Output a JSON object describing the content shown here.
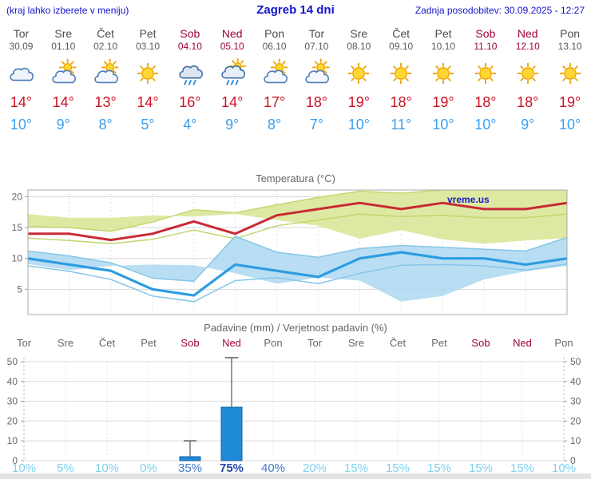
{
  "header": {
    "left_note": "(kraj lahko izberete v meniju)",
    "title": "Zagreb 14 dni",
    "updated": "Zadnja posodobitev: 30.09.2025 - 12:27"
  },
  "watermark": "vreme.us",
  "colors": {
    "link_blue": "#1414cc",
    "tmax_red": "#cc1122",
    "tmin_blue": "#3b9ff0",
    "weekend_red": "#a1003c",
    "line_max": "#c92a35",
    "line_min": "#2d9ce0",
    "band_max": "#dde9a2",
    "band_max_edge": "#c3d66e",
    "band_min": "#a9d7f0",
    "band_min_edge": "#86c6e8",
    "bar_fill": "#1f8ad8",
    "bar_stroke": "#11609f",
    "grid": "#d8d8d8",
    "prob_light": "#7fd2ee",
    "prob_mid": "#3f78cc",
    "prob_dark": "#2448a8"
  },
  "days": [
    {
      "name": "Tor",
      "date": "30.09",
      "weekend": false,
      "icon": "cloudy",
      "tmax": "14°",
      "tmin": "10°"
    },
    {
      "name": "Sre",
      "date": "01.10",
      "weekend": false,
      "icon": "partly",
      "tmax": "14°",
      "tmin": "9°"
    },
    {
      "name": "Čet",
      "date": "02.10",
      "weekend": false,
      "icon": "partly",
      "tmax": "13°",
      "tmin": "8°"
    },
    {
      "name": "Pet",
      "date": "03.10",
      "weekend": false,
      "icon": "sunny",
      "tmax": "14°",
      "tmin": "5°"
    },
    {
      "name": "Sob",
      "date": "04.10",
      "weekend": true,
      "icon": "rain",
      "tmax": "16°",
      "tmin": "4°"
    },
    {
      "name": "Ned",
      "date": "05.10",
      "weekend": true,
      "icon": "rain-partly",
      "tmax": "14°",
      "tmin": "9°"
    },
    {
      "name": "Pon",
      "date": "06.10",
      "weekend": false,
      "icon": "partly",
      "tmax": "17°",
      "tmin": "8°"
    },
    {
      "name": "Tor",
      "date": "07.10",
      "weekend": false,
      "icon": "partly",
      "tmax": "18°",
      "tmin": "7°"
    },
    {
      "name": "Sre",
      "date": "08.10",
      "weekend": false,
      "icon": "sunny",
      "tmax": "19°",
      "tmin": "10°"
    },
    {
      "name": "Čet",
      "date": "09.10",
      "weekend": false,
      "icon": "sunny",
      "tmax": "18°",
      "tmin": "11°"
    },
    {
      "name": "Pet",
      "date": "10.10",
      "weekend": false,
      "icon": "sunny",
      "tmax": "19°",
      "tmin": "10°"
    },
    {
      "name": "Sob",
      "date": "11.10",
      "weekend": true,
      "icon": "sunny",
      "tmax": "18°",
      "tmin": "10°"
    },
    {
      "name": "Ned",
      "date": "12.10",
      "weekend": true,
      "icon": "sunny",
      "tmax": "18°",
      "tmin": "9°"
    },
    {
      "name": "Pon",
      "date": "13.10",
      "weekend": false,
      "icon": "sunny",
      "tmax": "19°",
      "tmin": "10°"
    }
  ],
  "chart_data": [
    {
      "type": "line",
      "title": "Temperatura (°C)",
      "categories": [
        "Tor",
        "Sre",
        "Čet",
        "Pet",
        "Sob",
        "Ned",
        "Pon",
        "Tor",
        "Sre",
        "Čet",
        "Pet",
        "Sob",
        "Ned",
        "Pon"
      ],
      "ylim": [
        1,
        21
      ],
      "yticks": [
        5,
        10,
        15,
        20
      ],
      "grid": true,
      "series": [
        {
          "name": "Tmax",
          "values": [
            14,
            14,
            13,
            14,
            16,
            14,
            17,
            18,
            19,
            18,
            19,
            18,
            18,
            19
          ]
        },
        {
          "name": "Tmin",
          "values": [
            10,
            9,
            8,
            5,
            4,
            9,
            8,
            7,
            10,
            11,
            10,
            10,
            9,
            10
          ]
        },
        {
          "name": "Tmax range upper",
          "values": [
            15.2,
            15.0,
            14.4,
            15.9,
            17.9,
            17.4,
            18.7,
            19.9,
            20.9,
            20.6,
            21.1,
            21.1,
            21.4,
            22.4
          ]
        },
        {
          "name": "Tmax range lower",
          "values": [
            13.3,
            12.9,
            12.4,
            13.1,
            14.6,
            13.2,
            15.3,
            16.2,
            17.2,
            16.8,
            17.0,
            16.6,
            16.6,
            17.2
          ]
        },
        {
          "name": "Tmin range upper",
          "values": [
            11.2,
            10.4,
            9.3,
            6.8,
            6.3,
            13.6,
            11.0,
            10.2,
            11.6,
            12.1,
            11.8,
            11.5,
            11.2,
            13.4
          ]
        },
        {
          "name": "Tmin range lower",
          "values": [
            8.8,
            7.9,
            6.6,
            3.9,
            3.0,
            6.4,
            6.9,
            5.9,
            7.6,
            8.9,
            9.0,
            8.8,
            8.1,
            9.1
          ]
        }
      ]
    },
    {
      "type": "bar",
      "title": "Padavine (mm) / Verjetnost padavin (%)",
      "categories": [
        "Tor",
        "Sre",
        "Čet",
        "Pet",
        "Sob",
        "Ned",
        "Pon",
        "Tor",
        "Sre",
        "Čet",
        "Pet",
        "Sob",
        "Ned",
        "Pon"
      ],
      "values": [
        0,
        0,
        0,
        0,
        2,
        27,
        0,
        0,
        0,
        0,
        0,
        0,
        0,
        0
      ],
      "whiskers": [
        0,
        0,
        0,
        0,
        10,
        52,
        0,
        0,
        0,
        0,
        0,
        0,
        0,
        0
      ],
      "probabilities": [
        "10%",
        "5%",
        "10%",
        "0%",
        "35%",
        "75%",
        "40%",
        "20%",
        "15%",
        "15%",
        "15%",
        "15%",
        "15%",
        "10%"
      ],
      "ylim": [
        0,
        52
      ],
      "yticks": [
        0,
        10,
        20,
        30,
        40,
        50
      ],
      "grid": true
    }
  ]
}
